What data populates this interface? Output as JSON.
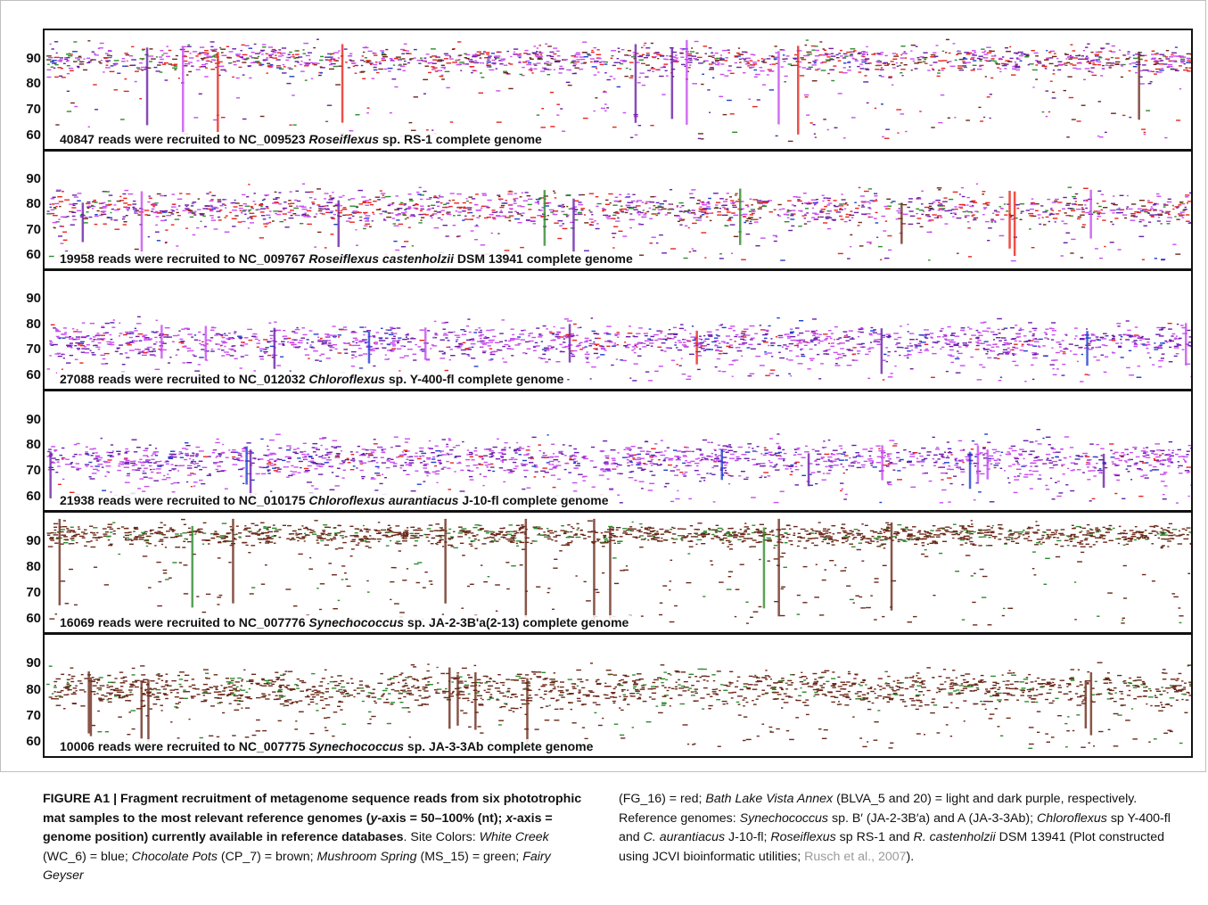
{
  "chart_data": {
    "type": "scatter",
    "y_axis": "50–100% (nt)",
    "x_axis": "genome position",
    "ylim": [
      55,
      100
    ],
    "yticks": [
      60,
      70,
      80,
      90
    ],
    "colors": {
      "White Creek": "#1f3fcf",
      "Chocolate Pots": "#6b2a1a",
      "Mushroom Spring": "#2e8b2e",
      "Fairy Geyser": "#e8241c",
      "Bath Lake Vista Annex light": "#c84cf0",
      "Bath Lake Vista Annex dark": "#6a1fa8"
    },
    "panels": [
      {
        "reads": "40847",
        "accession": "NC_009523",
        "organism": "Roseiflexus",
        "rest": "sp. RS-1",
        "mode": 90,
        "spread": 4,
        "sample_mix": "rose"
      },
      {
        "reads": "19958",
        "accession": "NC_009767",
        "organism": "Roseiflexus castenholzii",
        "rest": "DSM 13941",
        "mode": 79,
        "spread": 5,
        "sample_mix": "rose"
      },
      {
        "reads": "27088",
        "accession": "NC_012032",
        "organism": "Chloroflexus",
        "rest": "sp. Y-400-fl",
        "mode": 74,
        "spread": 5,
        "sample_mix": "chloro"
      },
      {
        "reads": "21938",
        "accession": "NC_010175",
        "organism": "Chloroflexus aurantiacus",
        "rest": "J-10-fl",
        "mode": 75,
        "spread": 5,
        "sample_mix": "chloro"
      },
      {
        "reads": "16069",
        "accession": "NC_007776",
        "organism": "Synechococcus",
        "rest": "sp. JA-2-3B'a(2-13)",
        "mode": 93,
        "spread": 3,
        "sample_mix": "syn"
      },
      {
        "reads": "10006",
        "accession": "NC_007775",
        "organism": "Synechococcus",
        "rest": "sp. JA-3-3Ab",
        "mode": 81,
        "spread": 5,
        "sample_mix": "syn"
      }
    ],
    "panel_text": {
      "mid": "reads were recruited to",
      "tail": "complete genome"
    }
  },
  "caption": {
    "fig_label": "FIGURE A1 | Fragment recruitment of metagenome sequence reads from six phototrophic mat samples to the most relevant reference genomes (",
    "y_sym": "y",
    "y_text": "-axis = 50–100% (nt); ",
    "x_sym": "x",
    "x_text": "-axis = genome position) currently available in reference databases",
    "site_intro": ". Site Colors: ",
    "wc": "White Creek",
    "wc_rest": " (WC_6) = blue; ",
    "cp": "Chocolate Pots",
    "cp_rest": " (CP_7) = brown; ",
    "ms": "Mushroom Spring",
    "ms_rest": " (MS_15) = green; ",
    "fg": "Fairy Geyser",
    "fg_rest": "(FG_16) = red; ",
    "bl": "Bath Lake Vista Annex",
    "bl_rest": " (BLVA_5 and 20) = light and dark purple, respectively. Reference genomes: ",
    "syn": "Synechococcus",
    "syn_rest": " sp. B′ (JA-2-3B′a) and A (JA-3-3Ab); ",
    "chl": "Chloroflexus",
    "chl_rest": " sp Y-400-fl and ",
    "ca": "C. aurantiacus",
    "ca_rest": " J-10-fl; ",
    "ros": "Roseiflexus",
    "ros_rest": " sp RS-1 and ",
    "rc": "R. castenholzii",
    "rc_rest": " DSM 13941 (Plot constructed using JCVI bioinformatic utilities; ",
    "ref": "Rusch et al., 2007",
    "end": ")."
  }
}
